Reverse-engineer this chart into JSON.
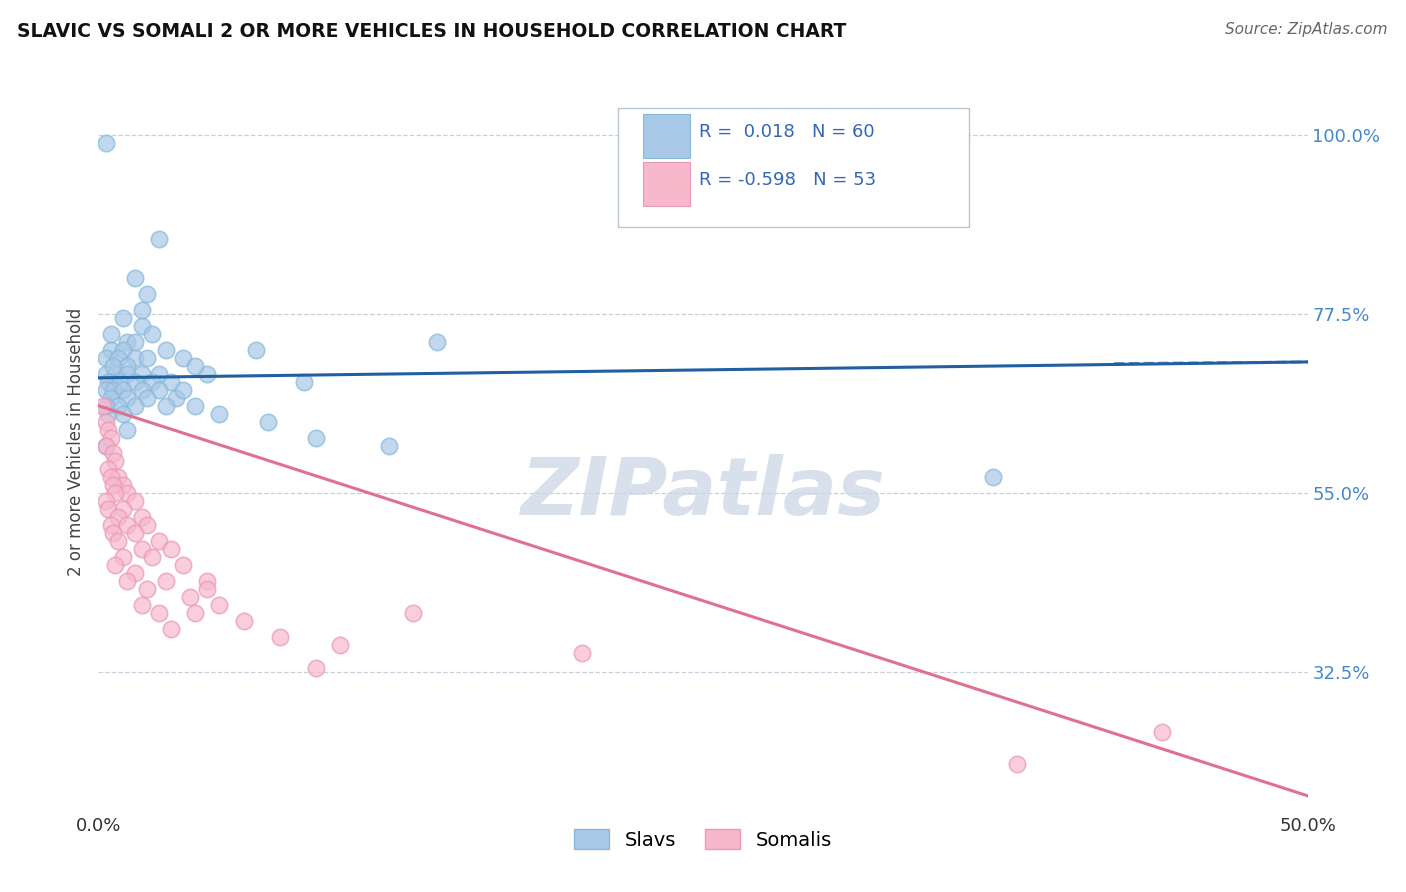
{
  "title": "SLAVIC VS SOMALI 2 OR MORE VEHICLES IN HOUSEHOLD CORRELATION CHART",
  "source": "Source: ZipAtlas.com",
  "ylabel": "2 or more Vehicles in Household",
  "ytick_labels": [
    "100.0%",
    "77.5%",
    "55.0%",
    "32.5%"
  ],
  "ytick_positions": [
    100,
    77.5,
    55,
    32.5
  ],
  "xlim": [
    0,
    50
  ],
  "ylim": [
    15,
    108
  ],
  "slavs_scatter": [
    [
      0.3,
      99
    ],
    [
      2.5,
      87
    ],
    [
      1.5,
      82
    ],
    [
      2.0,
      80
    ],
    [
      1.0,
      77
    ],
    [
      1.8,
      76
    ],
    [
      2.2,
      75
    ],
    [
      1.2,
      74
    ],
    [
      1.5,
      74
    ],
    [
      0.5,
      73
    ],
    [
      1.0,
      73
    ],
    [
      2.8,
      73
    ],
    [
      0.3,
      72
    ],
    [
      0.8,
      72
    ],
    [
      1.5,
      72
    ],
    [
      2.0,
      72
    ],
    [
      3.5,
      72
    ],
    [
      1.2,
      71
    ],
    [
      0.3,
      70
    ],
    [
      0.7,
      70
    ],
    [
      1.2,
      70
    ],
    [
      1.8,
      70
    ],
    [
      2.5,
      70
    ],
    [
      4.5,
      70
    ],
    [
      0.4,
      69
    ],
    [
      0.9,
      69
    ],
    [
      1.5,
      69
    ],
    [
      2.2,
      69
    ],
    [
      3.0,
      69
    ],
    [
      0.3,
      68
    ],
    [
      0.6,
      68
    ],
    [
      1.0,
      68
    ],
    [
      1.8,
      68
    ],
    [
      2.5,
      68
    ],
    [
      0.5,
      67
    ],
    [
      1.2,
      67
    ],
    [
      2.0,
      67
    ],
    [
      3.2,
      67
    ],
    [
      0.8,
      66
    ],
    [
      1.5,
      66
    ],
    [
      2.8,
      66
    ],
    [
      4.0,
      66
    ],
    [
      0.4,
      65
    ],
    [
      1.0,
      65
    ],
    [
      5.0,
      65
    ],
    [
      7.0,
      64
    ],
    [
      1.2,
      63
    ],
    [
      9.0,
      62
    ],
    [
      12.0,
      61
    ],
    [
      6.5,
      73
    ],
    [
      0.3,
      66
    ],
    [
      0.6,
      71
    ],
    [
      3.5,
      68
    ],
    [
      8.5,
      69
    ],
    [
      14.0,
      74
    ],
    [
      37.0,
      57
    ],
    [
      0.5,
      75
    ],
    [
      1.8,
      78
    ],
    [
      4.0,
      71
    ],
    [
      0.3,
      61
    ]
  ],
  "somalis_scatter": [
    [
      0.2,
      66
    ],
    [
      0.3,
      64
    ],
    [
      0.4,
      63
    ],
    [
      0.5,
      62
    ],
    [
      0.3,
      61
    ],
    [
      0.6,
      60
    ],
    [
      0.7,
      59
    ],
    [
      0.4,
      58
    ],
    [
      0.8,
      57
    ],
    [
      0.5,
      57
    ],
    [
      1.0,
      56
    ],
    [
      0.6,
      56
    ],
    [
      1.2,
      55
    ],
    [
      0.7,
      55
    ],
    [
      0.3,
      54
    ],
    [
      1.5,
      54
    ],
    [
      0.4,
      53
    ],
    [
      1.0,
      53
    ],
    [
      0.8,
      52
    ],
    [
      1.8,
      52
    ],
    [
      0.5,
      51
    ],
    [
      1.2,
      51
    ],
    [
      2.0,
      51
    ],
    [
      0.6,
      50
    ],
    [
      1.5,
      50
    ],
    [
      2.5,
      49
    ],
    [
      0.8,
      49
    ],
    [
      1.8,
      48
    ],
    [
      3.0,
      48
    ],
    [
      1.0,
      47
    ],
    [
      2.2,
      47
    ],
    [
      0.7,
      46
    ],
    [
      3.5,
      46
    ],
    [
      1.5,
      45
    ],
    [
      2.8,
      44
    ],
    [
      1.2,
      44
    ],
    [
      4.5,
      44
    ],
    [
      2.0,
      43
    ],
    [
      3.8,
      42
    ],
    [
      1.8,
      41
    ],
    [
      5.0,
      41
    ],
    [
      2.5,
      40
    ],
    [
      4.0,
      40
    ],
    [
      6.0,
      39
    ],
    [
      3.0,
      38
    ],
    [
      7.5,
      37
    ],
    [
      10.0,
      36
    ],
    [
      20.0,
      35
    ],
    [
      4.5,
      43
    ],
    [
      9.0,
      33
    ],
    [
      13.0,
      40
    ],
    [
      38.0,
      21
    ],
    [
      44.0,
      25
    ]
  ],
  "slavs_line_x": [
    0,
    50
  ],
  "slavs_line_y": [
    69.5,
    71.5
  ],
  "somalis_line_x": [
    0,
    50
  ],
  "somalis_line_y": [
    66,
    17
  ],
  "slav_dot_color": "#a8c8e8",
  "somali_dot_color": "#f8b8cc",
  "slav_line_color": "#2060a0",
  "somali_line_color": "#e07090",
  "slav_dot_edge": "#88b8d8",
  "somali_dot_edge": "#e898b8",
  "watermark_color": "#c8d4e4",
  "background_color": "#ffffff",
  "grid_color": "#c8d0dc",
  "ytick_color": "#4488cc",
  "xtick_color": "#333333",
  "ylabel_color": "#444444",
  "title_color": "#111111",
  "source_color": "#666666",
  "legend_text_color": "#3366bb",
  "legend_r1": "R =  0.018   N = 60",
  "legend_r2": "R = -0.598   N = 53"
}
